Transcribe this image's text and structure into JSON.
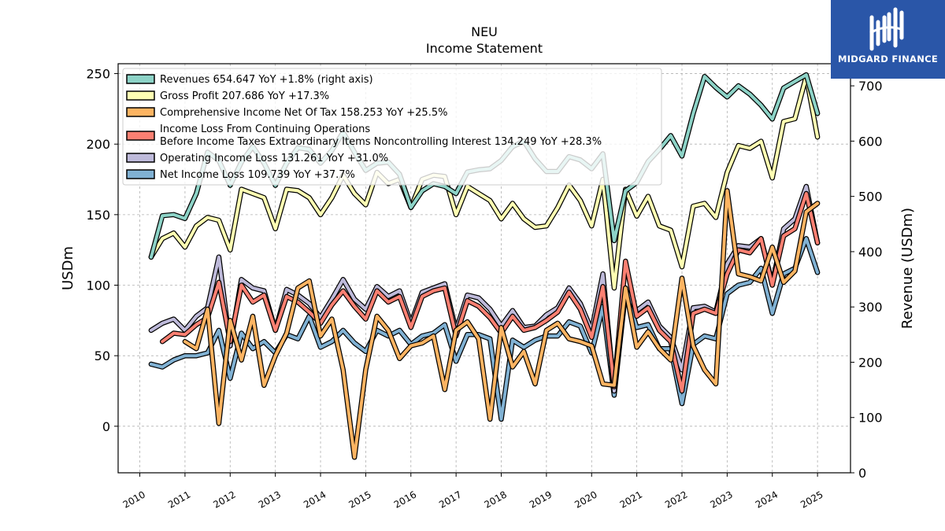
{
  "chart_data": {
    "type": "line",
    "title": "NEU",
    "subtitle": "Income Statement",
    "ylabel": "USDm",
    "y2label": "Revenue (USDm)",
    "ylim": [
      -33,
      257
    ],
    "y2lim": [
      0,
      740
    ],
    "yticks": [
      0,
      50,
      100,
      150,
      200,
      250
    ],
    "y2ticks": [
      0,
      100,
      200,
      300,
      400,
      500,
      600,
      700
    ],
    "xticks": [
      "2010",
      "2011",
      "2012",
      "2013",
      "2014",
      "2015",
      "2016",
      "2017",
      "2018",
      "2019",
      "2020",
      "2021",
      "2022",
      "2023",
      "2024",
      "2025"
    ],
    "grid": true,
    "legend_position": "top-left",
    "x": [
      2010.25,
      2010.5,
      2010.75,
      2011.0,
      2011.25,
      2011.5,
      2011.75,
      2012.0,
      2012.25,
      2012.5,
      2012.75,
      2013.0,
      2013.25,
      2013.5,
      2013.75,
      2014.0,
      2014.25,
      2014.5,
      2014.75,
      2015.0,
      2015.25,
      2015.5,
      2015.75,
      2016.0,
      2016.25,
      2016.5,
      2016.75,
      2017.0,
      2017.25,
      2017.5,
      2017.75,
      2018.0,
      2018.25,
      2018.5,
      2018.75,
      2019.0,
      2019.25,
      2019.5,
      2019.75,
      2020.0,
      2020.25,
      2020.5,
      2020.75,
      2021.0,
      2021.25,
      2021.5,
      2021.75,
      2022.0,
      2022.25,
      2022.5,
      2022.75,
      2023.0,
      2023.25,
      2023.5,
      2023.75,
      2024.0,
      2024.25,
      2024.5,
      2024.75,
      2025.0
    ],
    "series": [
      {
        "name": "Revenues  654.647 YoY +1.8% (right axis)",
        "axis": "right",
        "color": "#8dd3c7",
        "values": [
          390,
          465,
          467,
          460,
          505,
          580,
          565,
          520,
          562,
          590,
          560,
          520,
          560,
          588,
          585,
          560,
          583,
          616,
          580,
          547,
          560,
          562,
          540,
          480,
          510,
          523,
          518,
          505,
          544,
          548,
          550,
          565,
          590,
          600,
          568,
          545,
          545,
          572,
          566,
          550,
          577,
          420,
          510,
          525,
          563,
          585,
          610,
          573,
          650,
          717,
          697,
          680,
          700,
          685,
          665,
          640,
          696,
          708,
          720,
          650
        ]
      },
      {
        "name": "Gross Profit  207.686 YoY +17.3%",
        "axis": "left",
        "color": "#ffffb3",
        "values": [
          120,
          133,
          137,
          127,
          142,
          148,
          146,
          125,
          168,
          165,
          162,
          140,
          168,
          167,
          162,
          150,
          162,
          178,
          165,
          157,
          180,
          172,
          175,
          155,
          175,
          178,
          177,
          150,
          170,
          165,
          160,
          147,
          158,
          147,
          141,
          142,
          155,
          171,
          160,
          142,
          175,
          98,
          168,
          149,
          163,
          142,
          139,
          113,
          156,
          158,
          148,
          180,
          199,
          197,
          202,
          176,
          216,
          218,
          248,
          205
        ]
      },
      {
        "name": "Comprehensive Income Net Of Tax  158.253 YoY +25.5%",
        "axis": "left",
        "color": "#fdb462",
        "values": [
          null,
          null,
          null,
          60,
          55,
          83,
          2,
          75,
          47,
          78,
          29,
          50,
          66,
          98,
          103,
          64,
          76,
          40,
          -22,
          40,
          78,
          68,
          48,
          57,
          59,
          64,
          26,
          68,
          74,
          62,
          5,
          70,
          42,
          53,
          30,
          68,
          73,
          62,
          60,
          57,
          30,
          29,
          98,
          56,
          67,
          55,
          47,
          105,
          57,
          40,
          30,
          167,
          108,
          106,
          103,
          127,
          102,
          110,
          152,
          158
        ]
      },
      {
        "name": "Income Loss From Continuing Operations\nBefore Income Taxes Extraordinary Items Noncontrolling Interest  134.249 YoY +28.3%",
        "axis": "left",
        "color": "#fb8072",
        "values": [
          null,
          60,
          66,
          65,
          72,
          77,
          102,
          60,
          100,
          88,
          93,
          68,
          92,
          88,
          81,
          73,
          86,
          96,
          85,
          76,
          96,
          88,
          92,
          70,
          92,
          96,
          98,
          64,
          89,
          85,
          77,
          66,
          78,
          68,
          70,
          75,
          81,
          95,
          83,
          63,
          99,
          28,
          117,
          78,
          84,
          68,
          60,
          25,
          80,
          83,
          80,
          108,
          125,
          123,
          133,
          100,
          135,
          140,
          165,
          130
        ]
      },
      {
        "name": "Operating Income Loss  131.261 YoY +31.0%",
        "axis": "left",
        "color": "#bebada",
        "values": [
          68,
          73,
          76,
          68,
          78,
          84,
          120,
          57,
          104,
          98,
          96,
          68,
          97,
          93,
          87,
          77,
          90,
          104,
          90,
          83,
          99,
          92,
          96,
          73,
          95,
          98,
          101,
          68,
          93,
          91,
          83,
          71,
          82,
          70,
          71,
          79,
          84,
          98,
          87,
          68,
          108,
          25,
          97,
          82,
          88,
          71,
          63,
          40,
          84,
          85,
          81,
          115,
          128,
          127,
          133,
          101,
          140,
          147,
          170,
          130
        ]
      },
      {
        "name": "Net Income Loss  109.739 YoY +37.7%",
        "axis": "left",
        "color": "#80b1d3",
        "values": [
          44,
          42,
          47,
          50,
          50,
          52,
          68,
          34,
          66,
          55,
          60,
          52,
          65,
          62,
          78,
          56,
          60,
          68,
          59,
          53,
          68,
          64,
          68,
          58,
          64,
          66,
          72,
          46,
          65,
          65,
          62,
          5,
          61,
          56,
          61,
          64,
          64,
          74,
          71,
          52,
          85,
          22,
          95,
          70,
          72,
          55,
          55,
          16,
          58,
          64,
          62,
          94,
          100,
          102,
          112,
          80,
          108,
          112,
          133,
          109
        ]
      }
    ]
  },
  "logo": {
    "text": "MIDGARD FINANCE"
  }
}
